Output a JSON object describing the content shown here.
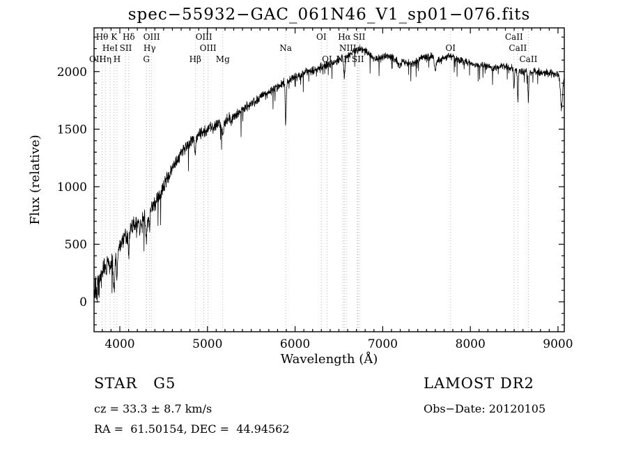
{
  "title": "spec−55932−GAC_061N46_V1_sp01−076.fits",
  "colors": {
    "background": "#ffffff",
    "axis": "#000000",
    "spectrum": "#000000",
    "marker_line": "#ff9b9b",
    "text": "#000000"
  },
  "footer": {
    "object_class": "STAR   G5",
    "survey": "LAMOST DR2",
    "cz": "cz = 33.3 ± 8.7 km/s",
    "obs_date": "Obs−Date: 20120105",
    "ra_dec": "RA =  61.50154, DEC =  44.94562"
  },
  "chart_data": {
    "type": "line",
    "title": "spec−55932−GAC_061N46_V1_sp01−076.fits",
    "xlabel": "Wavelength (Å)",
    "ylabel": "Flux (relative)",
    "xlim": [
      3706,
      9072
    ],
    "ylim": [
      -260,
      2380
    ],
    "x_ticks": [
      4000,
      5000,
      6000,
      7000,
      8000,
      9000
    ],
    "y_ticks": [
      0,
      500,
      1000,
      1500,
      2000
    ],
    "x_minor_step": 100,
    "y_minor_step": 100,
    "grid": false,
    "sample_step": 2.5,
    "continuum": [
      [
        3706,
        60
      ],
      [
        3740,
        110
      ],
      [
        3780,
        200
      ],
      [
        3820,
        255
      ],
      [
        3860,
        300
      ],
      [
        3900,
        335
      ],
      [
        3950,
        390
      ],
      [
        4000,
        500
      ],
      [
        4050,
        560
      ],
      [
        4100,
        615
      ],
      [
        4150,
        650
      ],
      [
        4200,
        690
      ],
      [
        4250,
        715
      ],
      [
        4300,
        735
      ],
      [
        4350,
        800
      ],
      [
        4400,
        855
      ],
      [
        4450,
        930
      ],
      [
        4500,
        1005
      ],
      [
        4550,
        1080
      ],
      [
        4600,
        1160
      ],
      [
        4650,
        1230
      ],
      [
        4700,
        1290
      ],
      [
        4750,
        1340
      ],
      [
        4800,
        1380
      ],
      [
        4850,
        1415
      ],
      [
        4900,
        1445
      ],
      [
        4950,
        1470
      ],
      [
        5000,
        1490
      ],
      [
        5100,
        1530
      ],
      [
        5200,
        1570
      ],
      [
        5300,
        1620
      ],
      [
        5400,
        1670
      ],
      [
        5500,
        1720
      ],
      [
        5600,
        1770
      ],
      [
        5700,
        1820
      ],
      [
        5800,
        1870
      ],
      [
        5900,
        1915
      ],
      [
        6000,
        1950
      ],
      [
        6100,
        1985
      ],
      [
        6200,
        2010
      ],
      [
        6300,
        2040
      ],
      [
        6400,
        2070
      ],
      [
        6500,
        2105
      ],
      [
        6600,
        2140
      ],
      [
        6700,
        2190
      ],
      [
        6760,
        2200
      ],
      [
        6820,
        2165
      ],
      [
        6880,
        2125
      ],
      [
        6950,
        2110
      ],
      [
        7050,
        2140
      ],
      [
        7150,
        2105
      ],
      [
        7250,
        2080
      ],
      [
        7350,
        2075
      ],
      [
        7450,
        2125
      ],
      [
        7550,
        2135
      ],
      [
        7650,
        2095
      ],
      [
        7750,
        2135
      ],
      [
        7850,
        2105
      ],
      [
        7950,
        2085
      ],
      [
        8050,
        2065
      ],
      [
        8150,
        2055
      ],
      [
        8250,
        2030
      ],
      [
        8350,
        2050
      ],
      [
        8450,
        2035
      ],
      [
        8550,
        2005
      ],
      [
        8650,
        2000
      ],
      [
        8750,
        1995
      ],
      [
        8850,
        1990
      ],
      [
        8950,
        1980
      ],
      [
        9072,
        1955
      ]
    ],
    "absorption_features": [
      [
        3934,
        270,
        7
      ],
      [
        3968,
        220,
        7
      ],
      [
        4102,
        190,
        7
      ],
      [
        4227,
        120,
        5
      ],
      [
        4304,
        160,
        9
      ],
      [
        4340,
        140,
        7
      ],
      [
        4861,
        140,
        7
      ],
      [
        5175,
        110,
        10
      ],
      [
        5270,
        80,
        8
      ],
      [
        5893,
        350,
        6
      ],
      [
        6563,
        170,
        7
      ],
      [
        7190,
        60,
        14
      ],
      [
        7600,
        100,
        10
      ],
      [
        8498,
        170,
        5
      ],
      [
        8542,
        260,
        5
      ],
      [
        8662,
        260,
        5
      ],
      [
        9040,
        280,
        12
      ]
    ],
    "noise": {
      "seed": 20120105,
      "amplitude_anchors": [
        [
          3706,
          150
        ],
        [
          3800,
          130
        ],
        [
          3900,
          118
        ],
        [
          4000,
          108
        ],
        [
          4200,
          95
        ],
        [
          4400,
          85
        ],
        [
          4700,
          70
        ],
        [
          5000,
          60
        ],
        [
          5500,
          52
        ],
        [
          6000,
          46
        ],
        [
          6500,
          42
        ],
        [
          7000,
          40
        ],
        [
          7600,
          38
        ],
        [
          8200,
          36
        ],
        [
          8700,
          40
        ],
        [
          9072,
          44
        ]
      ],
      "spike_probability": 0.025,
      "spike_scale": 3
    },
    "spectral_lines": [
      {
        "label": "OII",
        "wavelength": 3727,
        "row": 3
      },
      {
        "label": "Hθ",
        "wavelength": 3798,
        "row": 1
      },
      {
        "label": "Hη",
        "wavelength": 3835,
        "row": 3
      },
      {
        "label": "HeI",
        "wavelength": 3889,
        "row": 2
      },
      {
        "label": "K",
        "wavelength": 3934,
        "row": 1
      },
      {
        "label": "H",
        "wavelength": 3968,
        "row": 3
      },
      {
        "label": "SII",
        "wavelength": 4068,
        "row": 2
      },
      {
        "label": "Hδ",
        "wavelength": 4102,
        "row": 1
      },
      {
        "label": "G",
        "wavelength": 4304,
        "row": 3
      },
      {
        "label": "Hγ",
        "wavelength": 4340,
        "row": 2
      },
      {
        "label": "OIII",
        "wavelength": 4363,
        "row": 1
      },
      {
        "label": "Hβ",
        "wavelength": 4861,
        "row": 3
      },
      {
        "label": "OIII",
        "wavelength": 4959,
        "row": 1
      },
      {
        "label": "OIII",
        "wavelength": 5007,
        "row": 2
      },
      {
        "label": "Mg",
        "wavelength": 5175,
        "row": 3
      },
      {
        "label": "Na",
        "wavelength": 5893,
        "row": 2
      },
      {
        "label": "OI",
        "wavelength": 6300,
        "row": 1
      },
      {
        "label": "OI",
        "wavelength": 6364,
        "row": 3
      },
      {
        "label": "NII",
        "wavelength": 6548,
        "row": 3
      },
      {
        "label": "Hα",
        "wavelength": 6563,
        "row": 1
      },
      {
        "label": "NII",
        "wavelength": 6583,
        "row": 2
      },
      {
        "label": "Li",
        "wavelength": 6708,
        "row": 2
      },
      {
        "label": "SII",
        "wavelength": 6717,
        "row": 3
      },
      {
        "label": "SII",
        "wavelength": 6731,
        "row": 1
      },
      {
        "label": "OI",
        "wavelength": 7774,
        "row": 2
      },
      {
        "label": "CaII",
        "wavelength": 8498,
        "row": 1
      },
      {
        "label": "CaII",
        "wavelength": 8542,
        "row": 2
      },
      {
        "label": "CaII",
        "wavelength": 8662,
        "row": 3
      }
    ]
  }
}
